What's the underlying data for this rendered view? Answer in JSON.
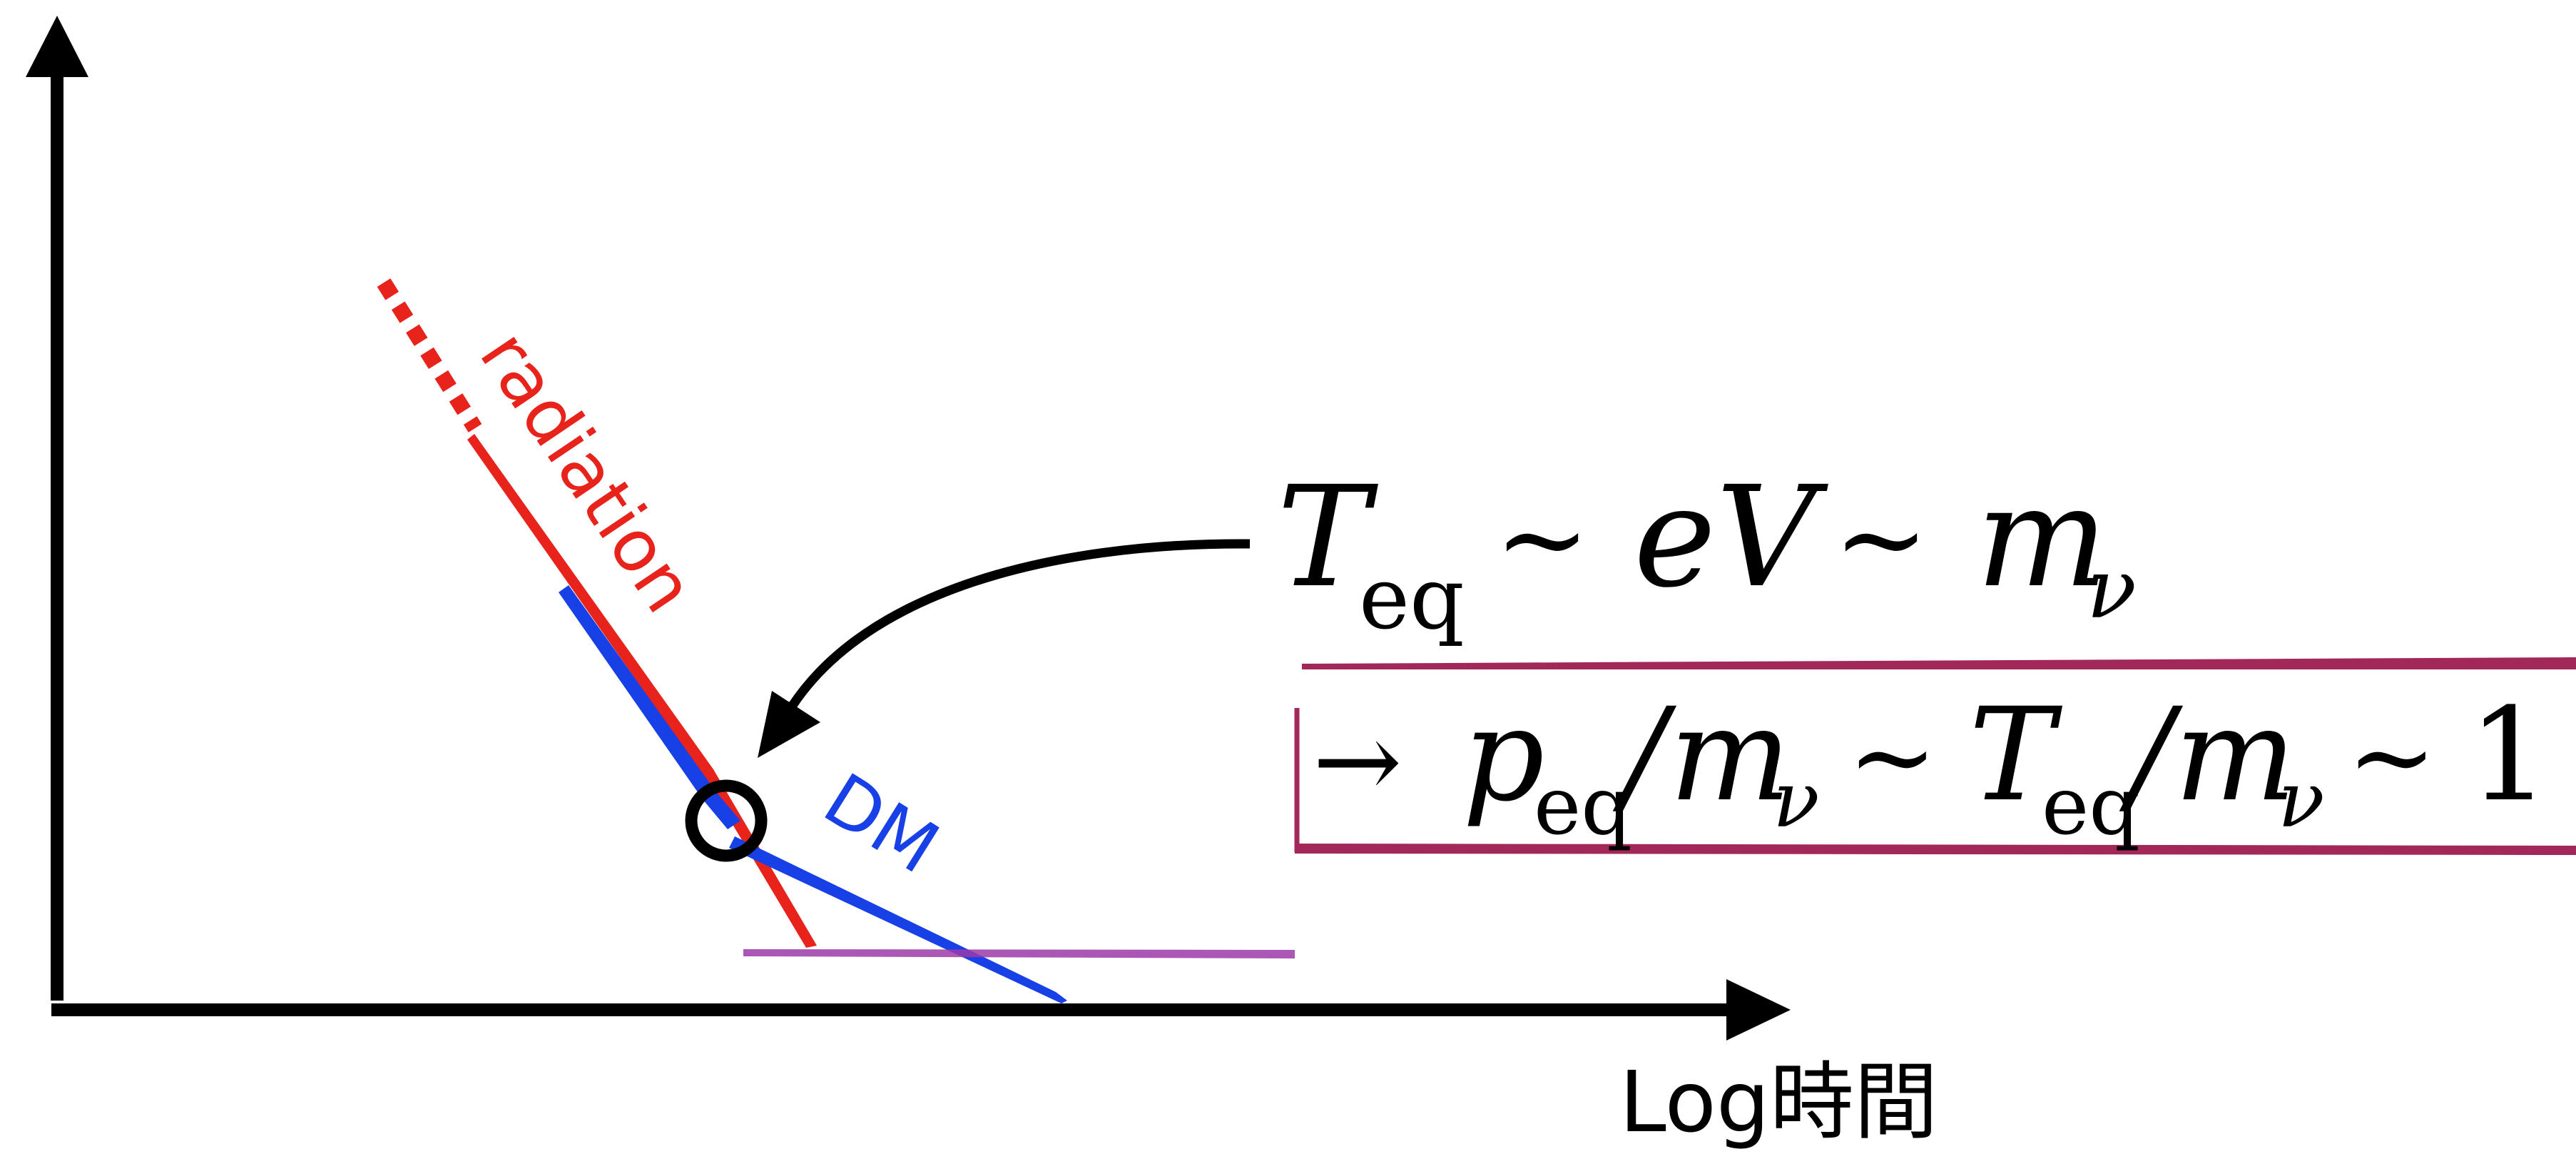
{
  "axes": {
    "x_label": "Log時間"
  },
  "curves": {
    "radiation_label": "radiation",
    "dm_label": "DM"
  },
  "equations": {
    "line1": {
      "T": "T",
      "T_sub": "eq",
      "sim1": "~",
      "eV": "eV",
      "sim2": "~",
      "m": "m",
      "m_sub": "ν"
    },
    "line2": {
      "arrow": "→",
      "p": "p",
      "p_sub": "eq",
      "slash1": "/",
      "m1": "m",
      "m1_sub": "ν",
      "sim1": "~",
      "T": "T",
      "T_sub": "eq",
      "slash2": "/",
      "m2": "m",
      "m2_sub": "ν",
      "sim2": "~",
      "one": "1"
    }
  },
  "colors": {
    "axis": "#000000",
    "radiation": "#e8231b",
    "dm": "#1740e6",
    "highlight": "#a3285a",
    "baseline": "#9b3aa8",
    "text": "#000000"
  }
}
